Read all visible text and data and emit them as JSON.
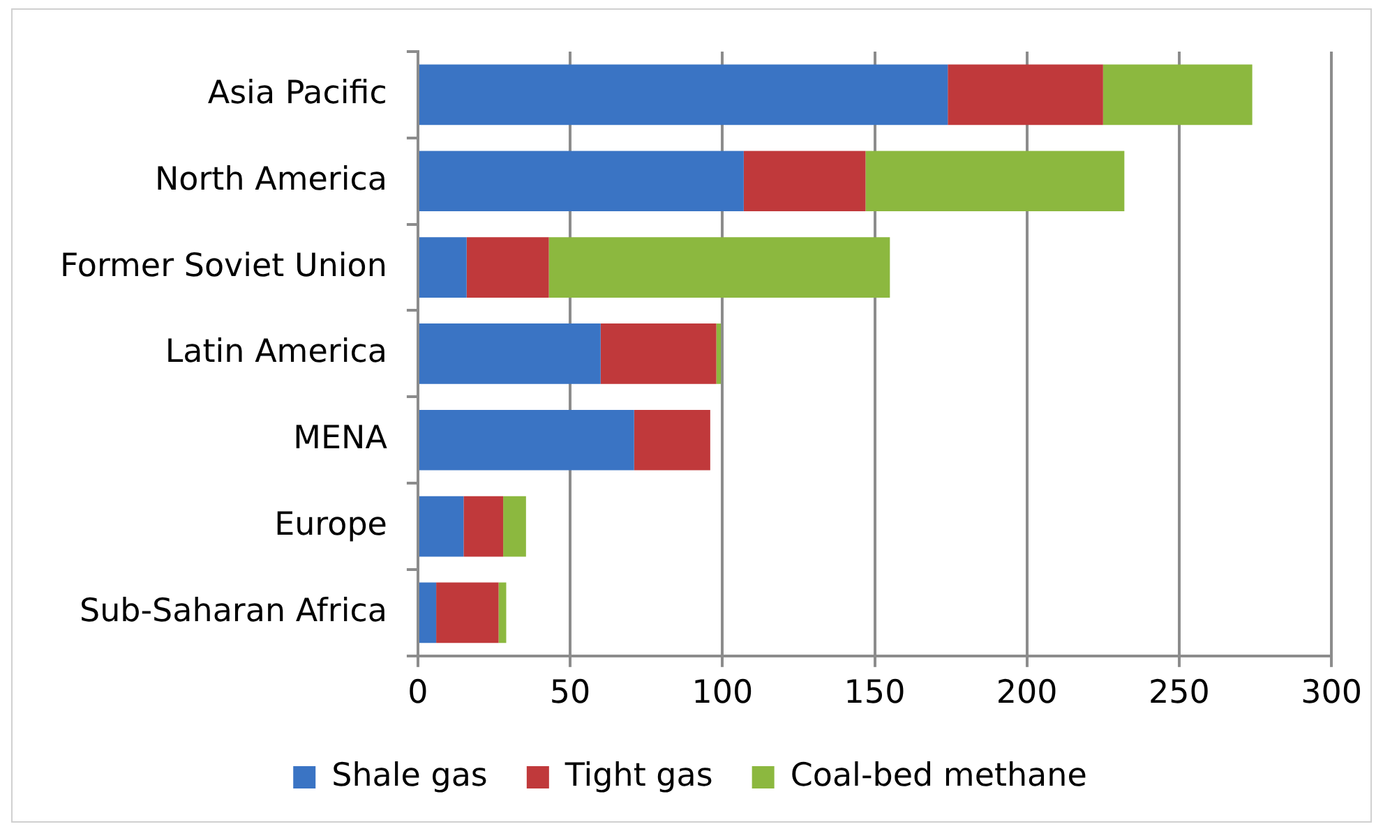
{
  "chart_data": {
    "type": "bar",
    "orientation": "horizontal",
    "stacked": true,
    "categories": [
      "Asia Pacific",
      "North America",
      "Former Soviet Union",
      "Latin America",
      "MENA",
      "Europe",
      "Sub-Saharan Africa"
    ],
    "series": [
      {
        "name": "Shale gas",
        "color": "#3a74c4",
        "values": [
          174,
          107,
          16,
          60,
          71,
          15,
          6
        ]
      },
      {
        "name": "Tight gas",
        "color": "#c0393b",
        "values": [
          51,
          40,
          27,
          38,
          25,
          13,
          20.5
        ]
      },
      {
        "name": "Coal-bed methane",
        "color": "#8cb83f",
        "values": [
          49,
          85,
          112,
          1.5,
          0,
          7.5,
          2.5
        ]
      }
    ],
    "xlim": [
      0,
      300
    ],
    "xticks": [
      0,
      50,
      100,
      150,
      200,
      250,
      300
    ],
    "grid": "x",
    "legend": "bottom"
  }
}
